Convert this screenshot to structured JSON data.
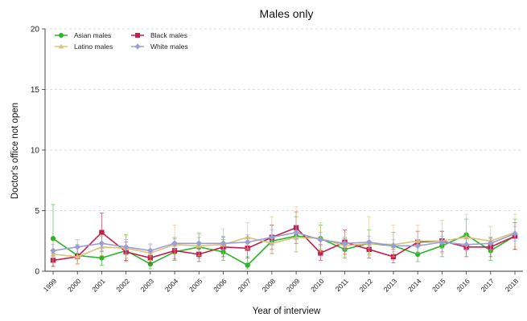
{
  "chart_data": {
    "type": "line",
    "title": "Males only",
    "xlabel": "Year of interview",
    "ylabel": "Doctor's office not open",
    "ylim": [
      0,
      20
    ],
    "yticks": [
      0,
      5,
      10,
      15,
      20
    ],
    "grid": "horizontal-dashed",
    "legend": "top-left",
    "x": [
      "1999",
      "2000",
      "2001",
      "2002",
      "2003",
      "2004",
      "2005",
      "2006",
      "2007",
      "2008",
      "2009",
      "2010",
      "2011",
      "2012",
      "2013",
      "2014",
      "2015",
      "2016",
      "2017",
      "2018"
    ],
    "series": [
      {
        "name": "Asian males",
        "color": "#2ab52a",
        "marker": "circle",
        "values": [
          2.7,
          1.3,
          1.1,
          1.7,
          0.6,
          1.6,
          2.0,
          1.6,
          0.5,
          2.5,
          2.9,
          2.7,
          1.8,
          2.3,
          2.1,
          1.4,
          2.1,
          3.0,
          1.7,
          2.9
        ],
        "ci_low": [
          0.4,
          0.6,
          0.5,
          0.8,
          0.2,
          0.9,
          1.1,
          0.9,
          0.2,
          1.5,
          1.6,
          1.8,
          1.1,
          1.4,
          1.2,
          0.8,
          1.2,
          1.8,
          0.9,
          1.8
        ],
        "ci_high": [
          5.5,
          2.2,
          1.9,
          3.0,
          1.3,
          2.7,
          3.1,
          2.6,
          1.2,
          3.8,
          4.5,
          3.8,
          2.7,
          3.4,
          3.2,
          2.3,
          3.3,
          4.3,
          2.7,
          4.3
        ]
      },
      {
        "name": "Black males",
        "color": "#c41e4a",
        "marker": "square",
        "values": [
          0.9,
          1.2,
          3.2,
          1.6,
          1.1,
          1.7,
          1.4,
          2.0,
          1.9,
          2.8,
          3.6,
          1.5,
          2.4,
          1.8,
          1.2,
          2.4,
          2.5,
          2.0,
          2.0,
          2.9
        ],
        "ci_low": [
          0.4,
          0.6,
          1.6,
          0.9,
          0.6,
          1.0,
          0.8,
          1.2,
          1.1,
          1.8,
          2.3,
          0.9,
          1.4,
          1.1,
          0.7,
          1.5,
          1.6,
          1.2,
          1.2,
          1.8
        ],
        "ci_high": [
          1.5,
          2.0,
          4.8,
          2.4,
          1.8,
          2.4,
          2.1,
          2.8,
          2.8,
          3.8,
          4.9,
          2.2,
          3.4,
          2.5,
          1.8,
          3.3,
          3.3,
          2.8,
          2.8,
          4.0
        ]
      },
      {
        "name": "Latino males",
        "color": "#dbc27a",
        "marker": "triangle",
        "values": [
          1.4,
          1.2,
          2.0,
          1.9,
          1.5,
          2.2,
          2.1,
          2.2,
          2.8,
          2.3,
          2.8,
          2.7,
          2.1,
          2.3,
          2.2,
          2.5,
          2.5,
          2.8,
          2.5,
          3.2
        ],
        "ci_low": [
          0.7,
          0.6,
          1.3,
          1.1,
          0.9,
          1.4,
          1.3,
          1.4,
          1.8,
          1.4,
          1.6,
          1.6,
          1.2,
          1.3,
          1.2,
          1.5,
          1.5,
          1.7,
          1.5,
          2.0
        ],
        "ci_high": [
          2.5,
          2.2,
          3.0,
          2.9,
          2.3,
          3.8,
          3.2,
          3.5,
          4.0,
          4.5,
          5.3,
          4.0,
          3.2,
          4.5,
          3.8,
          3.8,
          4.2,
          4.7,
          3.7,
          4.7
        ]
      },
      {
        "name": "White males",
        "color": "#9b9ed4",
        "marker": "diamond",
        "values": [
          1.7,
          2.0,
          2.3,
          2.0,
          1.7,
          2.3,
          2.3,
          2.3,
          2.4,
          2.8,
          3.2,
          2.6,
          2.3,
          2.4,
          2.1,
          2.1,
          2.4,
          2.2,
          2.3,
          3.1
        ],
        "ci_low": [
          1.2,
          1.5,
          1.7,
          1.5,
          1.2,
          1.8,
          1.8,
          1.8,
          1.9,
          2.2,
          2.6,
          2.1,
          1.8,
          1.9,
          1.6,
          1.6,
          1.9,
          1.7,
          1.8,
          2.5
        ],
        "ci_high": [
          2.2,
          2.6,
          2.9,
          2.6,
          2.2,
          2.8,
          2.8,
          2.9,
          3.0,
          3.4,
          3.8,
          3.2,
          2.8,
          2.9,
          2.6,
          2.6,
          2.9,
          2.7,
          2.8,
          3.7
        ]
      }
    ]
  }
}
